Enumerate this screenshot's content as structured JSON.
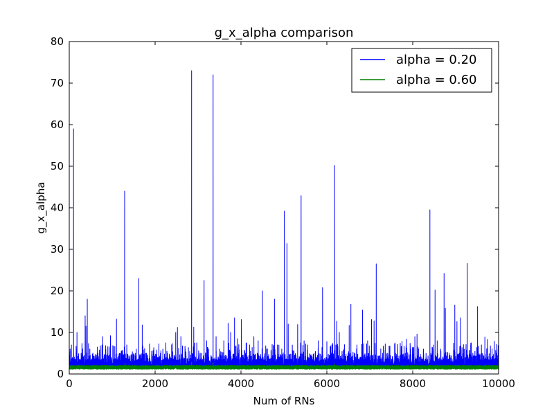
{
  "chart_data": {
    "type": "line",
    "title": "g_x_alpha comparison",
    "xlabel": "Num of RNs",
    "ylabel": "g_x_alpha",
    "xlim": [
      0,
      10000
    ],
    "ylim": [
      0,
      80
    ],
    "xticks": [
      0,
      2000,
      4000,
      6000,
      8000,
      10000
    ],
    "yticks": [
      0,
      10,
      20,
      30,
      40,
      50,
      60,
      70,
      80
    ],
    "grid": false,
    "legend_position": "upper-right",
    "series": [
      {
        "name": "alpha = 0.20",
        "color": "#0000ff",
        "baseline": 1.5,
        "n_points": 10000,
        "peaks": [
          {
            "x": 20,
            "y": 6
          },
          {
            "x": 50,
            "y": 7
          },
          {
            "x": 100,
            "y": 59
          },
          {
            "x": 150,
            "y": 3.5
          },
          {
            "x": 180,
            "y": 10
          },
          {
            "x": 220,
            "y": 4
          },
          {
            "x": 300,
            "y": 3
          },
          {
            "x": 370,
            "y": 14
          },
          {
            "x": 390,
            "y": 11.5
          },
          {
            "x": 420,
            "y": 18
          },
          {
            "x": 480,
            "y": 6
          },
          {
            "x": 550,
            "y": 5
          },
          {
            "x": 650,
            "y": 4
          },
          {
            "x": 780,
            "y": 9
          },
          {
            "x": 850,
            "y": 5
          },
          {
            "x": 960,
            "y": 9.2
          },
          {
            "x": 1100,
            "y": 13.2
          },
          {
            "x": 1200,
            "y": 5
          },
          {
            "x": 1290,
            "y": 44
          },
          {
            "x": 1340,
            "y": 7
          },
          {
            "x": 1450,
            "y": 4
          },
          {
            "x": 1560,
            "y": 6
          },
          {
            "x": 1620,
            "y": 23
          },
          {
            "x": 1700,
            "y": 11.8
          },
          {
            "x": 1800,
            "y": 5
          },
          {
            "x": 1920,
            "y": 5.5
          },
          {
            "x": 2050,
            "y": 4
          },
          {
            "x": 2180,
            "y": 6
          },
          {
            "x": 2250,
            "y": 7.5
          },
          {
            "x": 2400,
            "y": 4
          },
          {
            "x": 2480,
            "y": 10
          },
          {
            "x": 2520,
            "y": 11.2
          },
          {
            "x": 2600,
            "y": 9
          },
          {
            "x": 2700,
            "y": 6
          },
          {
            "x": 2850,
            "y": 73
          },
          {
            "x": 2900,
            "y": 11.3
          },
          {
            "x": 2970,
            "y": 7.5
          },
          {
            "x": 3050,
            "y": 5
          },
          {
            "x": 3140,
            "y": 22.5
          },
          {
            "x": 3200,
            "y": 8
          },
          {
            "x": 3300,
            "y": 4
          },
          {
            "x": 3350,
            "y": 72
          },
          {
            "x": 3420,
            "y": 9
          },
          {
            "x": 3500,
            "y": 6
          },
          {
            "x": 3600,
            "y": 8
          },
          {
            "x": 3700,
            "y": 12.2
          },
          {
            "x": 3760,
            "y": 10
          },
          {
            "x": 3850,
            "y": 13.5
          },
          {
            "x": 3920,
            "y": 8.5
          },
          {
            "x": 4010,
            "y": 13.1
          },
          {
            "x": 4100,
            "y": 5
          },
          {
            "x": 4200,
            "y": 7
          },
          {
            "x": 4300,
            "y": 9
          },
          {
            "x": 4400,
            "y": 8
          },
          {
            "x": 4500,
            "y": 20
          },
          {
            "x": 4600,
            "y": 6
          },
          {
            "x": 4700,
            "y": 5
          },
          {
            "x": 4780,
            "y": 18
          },
          {
            "x": 4850,
            "y": 7
          },
          {
            "x": 4950,
            "y": 6
          },
          {
            "x": 5010,
            "y": 39.2
          },
          {
            "x": 5070,
            "y": 31.4
          },
          {
            "x": 5100,
            "y": 12
          },
          {
            "x": 5200,
            "y": 5
          },
          {
            "x": 5320,
            "y": 11.9
          },
          {
            "x": 5400,
            "y": 42.9
          },
          {
            "x": 5470,
            "y": 8
          },
          {
            "x": 5550,
            "y": 7
          },
          {
            "x": 5700,
            "y": 5
          },
          {
            "x": 5800,
            "y": 8
          },
          {
            "x": 5900,
            "y": 20.8
          },
          {
            "x": 6000,
            "y": 7.8
          },
          {
            "x": 6100,
            "y": 5
          },
          {
            "x": 6180,
            "y": 50.2
          },
          {
            "x": 6230,
            "y": 12.7
          },
          {
            "x": 6290,
            "y": 10
          },
          {
            "x": 6400,
            "y": 6
          },
          {
            "x": 6520,
            "y": 11.7
          },
          {
            "x": 6560,
            "y": 16.8
          },
          {
            "x": 6700,
            "y": 7
          },
          {
            "x": 6830,
            "y": 15.4
          },
          {
            "x": 6950,
            "y": 8
          },
          {
            "x": 7040,
            "y": 13.1
          },
          {
            "x": 7100,
            "y": 12.8
          },
          {
            "x": 7150,
            "y": 26.5
          },
          {
            "x": 7300,
            "y": 5
          },
          {
            "x": 7450,
            "y": 6.7
          },
          {
            "x": 7600,
            "y": 5
          },
          {
            "x": 7750,
            "y": 7.9
          },
          {
            "x": 7850,
            "y": 8.4
          },
          {
            "x": 7950,
            "y": 6
          },
          {
            "x": 8050,
            "y": 9
          },
          {
            "x": 8100,
            "y": 9.6
          },
          {
            "x": 8250,
            "y": 6
          },
          {
            "x": 8400,
            "y": 39.5
          },
          {
            "x": 8480,
            "y": 7
          },
          {
            "x": 8520,
            "y": 20.2
          },
          {
            "x": 8570,
            "y": 8
          },
          {
            "x": 8650,
            "y": 6
          },
          {
            "x": 8730,
            "y": 24.2
          },
          {
            "x": 8760,
            "y": 15.8
          },
          {
            "x": 8850,
            "y": 5
          },
          {
            "x": 8980,
            "y": 16.6
          },
          {
            "x": 9030,
            "y": 12.6
          },
          {
            "x": 9110,
            "y": 13.5
          },
          {
            "x": 9200,
            "y": 6
          },
          {
            "x": 9270,
            "y": 26.6
          },
          {
            "x": 9350,
            "y": 7
          },
          {
            "x": 9400,
            "y": 5
          },
          {
            "x": 9510,
            "y": 16.2
          },
          {
            "x": 9600,
            "y": 7
          },
          {
            "x": 9680,
            "y": 8.9
          },
          {
            "x": 9740,
            "y": 8.3
          },
          {
            "x": 9820,
            "y": 4
          },
          {
            "x": 9900,
            "y": 7.9
          },
          {
            "x": 9950,
            "y": 5
          }
        ]
      },
      {
        "name": "alpha = 0.60",
        "color": "#008000",
        "baseline": 1.6,
        "n_points": 10000,
        "peaks": [
          {
            "x": 1300,
            "y": 2.5
          },
          {
            "x": 2850,
            "y": 2.8
          },
          {
            "x": 3350,
            "y": 2.7
          },
          {
            "x": 6180,
            "y": 2.4
          }
        ]
      }
    ]
  }
}
